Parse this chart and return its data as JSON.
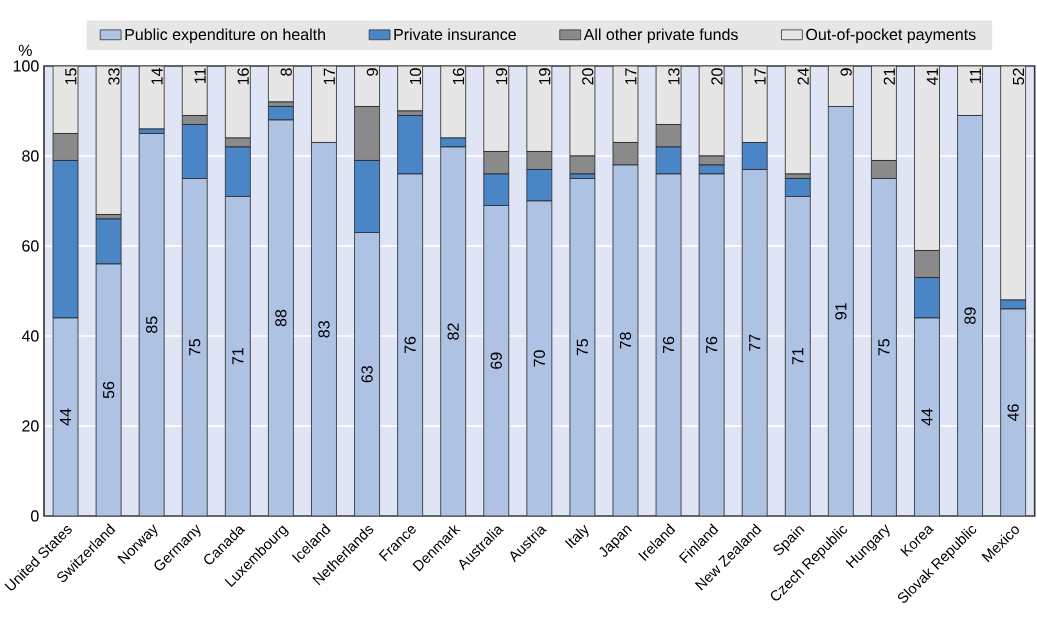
{
  "chart_data": {
    "type": "bar",
    "stacked": true,
    "ylabel": "%",
    "ylim": [
      0,
      100
    ],
    "yticks": [
      0,
      20,
      40,
      60,
      80,
      100
    ],
    "grid": "y",
    "legend": "top",
    "categories": [
      "United States",
      "Switzerland",
      "Norway",
      "Germany",
      "Canada",
      "Luxembourg",
      "Iceland",
      "Netherlands",
      "France",
      "Denmark",
      "Australia",
      "Austria",
      "Italy",
      "Japan",
      "Ireland",
      "Finland",
      "New Zealand",
      "Spain",
      "Czech Republic",
      "Hungary",
      "Korea",
      "Slovak Republic",
      "Mexico"
    ],
    "series": [
      {
        "name": "Public expenditure on health",
        "color": "#aec3e4",
        "values": [
          44,
          56,
          85,
          75,
          71,
          88,
          83,
          63,
          76,
          82,
          69,
          70,
          75,
          78,
          76,
          76,
          77,
          71,
          91,
          75,
          44,
          89,
          46
        ],
        "value_labels": [
          "44",
          "56",
          "85",
          "75",
          "71",
          "88",
          "83",
          "63",
          "76",
          "82",
          "69",
          "70",
          "75",
          "78",
          "76",
          "76",
          "77",
          "71",
          "91",
          "75",
          "44",
          "89",
          "46"
        ]
      },
      {
        "name": "Private insurance",
        "color": "#4a86c5",
        "values": [
          35,
          10,
          1,
          12,
          11,
          3,
          0,
          16,
          13,
          2,
          7,
          7,
          1,
          0,
          6,
          2,
          6,
          4,
          0,
          0,
          9,
          0,
          2
        ]
      },
      {
        "name": "All other private funds",
        "color": "#8a8a8a",
        "values": [
          6,
          1,
          0,
          2,
          2,
          1,
          0,
          12,
          1,
          0,
          5,
          4,
          4,
          5,
          5,
          2,
          0,
          1,
          0,
          4,
          6,
          0,
          0
        ]
      },
      {
        "name": "Out-of-pocket payments",
        "color": "#e6e6e6",
        "values": [
          15,
          33,
          14,
          11,
          16,
          8,
          17,
          9,
          10,
          16,
          19,
          19,
          20,
          17,
          13,
          20,
          17,
          24,
          9,
          21,
          41,
          11,
          52
        ],
        "value_labels": [
          "15",
          "33",
          "14",
          "11",
          "16",
          "8",
          "17",
          "9",
          "10",
          "16",
          "19",
          "19",
          "20",
          "17",
          "13",
          "20",
          "17",
          "24",
          "9",
          "21",
          "41",
          "11",
          "52"
        ]
      }
    ]
  }
}
